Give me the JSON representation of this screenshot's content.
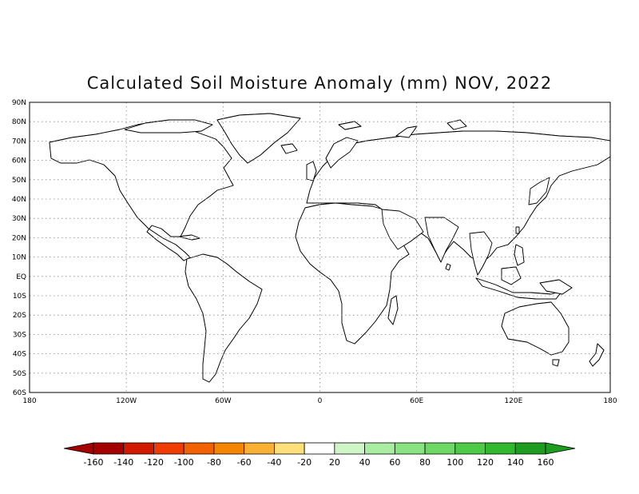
{
  "title": "Calculated Soil Moisture Anomaly (mm) NOV, 2022",
  "axes": {
    "x_ticks": [
      "180",
      "120W",
      "60W",
      "0",
      "60E",
      "120E",
      "180"
    ],
    "y_ticks": [
      "90N",
      "80N",
      "70N",
      "60N",
      "50N",
      "40N",
      "30N",
      "20N",
      "10N",
      "EQ",
      "10S",
      "20S",
      "30S",
      "40S",
      "50S",
      "60S"
    ],
    "lon_range": [
      -180,
      180
    ],
    "lat_range": [
      -60,
      90
    ],
    "grid": "dotted"
  },
  "colorbar": {
    "labels": [
      "-160",
      "-140",
      "-120",
      "-100",
      "-80",
      "-60",
      "-40",
      "-20",
      "20",
      "40",
      "60",
      "80",
      "100",
      "120",
      "140",
      "160"
    ],
    "colors": [
      "#a50000",
      "#d21a00",
      "#ef3c00",
      "#f36200",
      "#f58700",
      "#f8b035",
      "#fde07c",
      "#ffffff",
      "#cdf5c5",
      "#a9eda2",
      "#8ae382",
      "#6ed865",
      "#4fca48",
      "#32b82f",
      "#1e9c1f"
    ],
    "unit": "mm"
  },
  "colors": {
    "dry_strong": "#b70d00",
    "dry_mid": "#f07a00",
    "dry_light": "#fbc860",
    "wet_light": "#b5ecab",
    "wet_mid": "#6ed865",
    "wet_strong": "#2e9e2c"
  }
}
